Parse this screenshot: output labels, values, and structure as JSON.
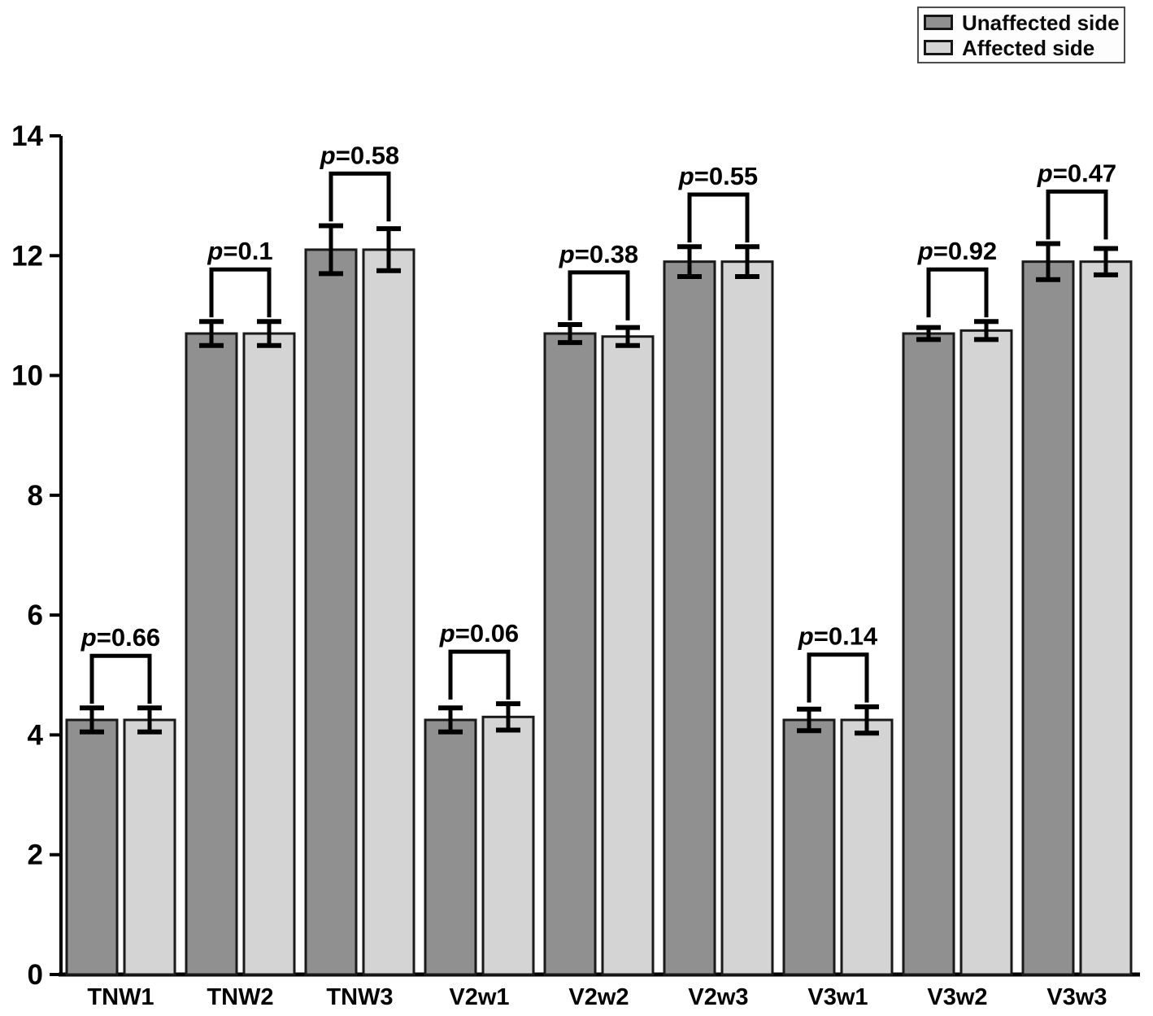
{
  "legend": {
    "items": [
      {
        "label": "Unaffected side"
      },
      {
        "label": "Affected side"
      }
    ]
  },
  "chart_data": {
    "type": "bar",
    "title": "",
    "xlabel": "",
    "ylabel": "",
    "categories": [
      "TNW1",
      "TNW2",
      "TNW3",
      "V2w1",
      "V2w2",
      "V2w3",
      "V3w1",
      "V3w2",
      "V3w3"
    ],
    "series": [
      {
        "name": "Unaffected side",
        "color": "#909090",
        "values": [
          4.25,
          10.7,
          12.1,
          4.25,
          10.7,
          11.9,
          4.25,
          10.7,
          11.9
        ],
        "errors": [
          0.2,
          0.2,
          0.4,
          0.2,
          0.15,
          0.25,
          0.18,
          0.1,
          0.3
        ]
      },
      {
        "name": "Affected side",
        "color": "#d4d4d4",
        "values": [
          4.25,
          10.7,
          12.1,
          4.3,
          10.65,
          11.9,
          4.25,
          10.75,
          11.9
        ],
        "errors": [
          0.2,
          0.2,
          0.35,
          0.22,
          0.15,
          0.25,
          0.22,
          0.15,
          0.22
        ]
      }
    ],
    "p_values": [
      "p=0.66",
      "p=0.1",
      "p=0.58",
      "p=0.06",
      "p=0.38",
      "p=0.55",
      "p=0.14",
      "p=0.92",
      "p=0.47"
    ],
    "ylim": [
      0,
      14
    ],
    "yticks": [
      0,
      2,
      4,
      6,
      8,
      10,
      12,
      14
    ],
    "grid": false,
    "legend_position": "top-right",
    "bar_border_color": "#1a1a1a",
    "axis_color": "#000000"
  }
}
